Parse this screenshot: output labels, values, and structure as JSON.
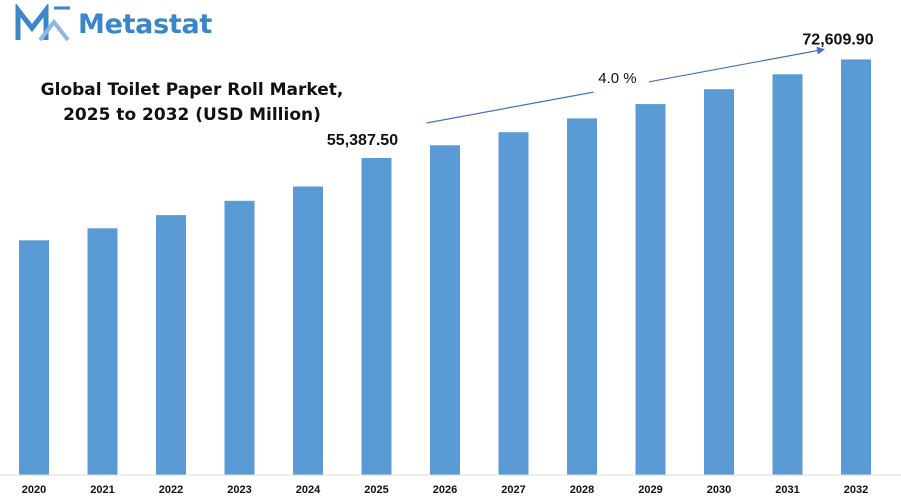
{
  "brand": {
    "name": "Metastat",
    "color": "#3b86c8",
    "icon": "metastat-logo-icon"
  },
  "chart_data": {
    "type": "bar",
    "title_lines": [
      "Global Toilet Paper Roll Market,",
      "2025 to 2032 (USD Million)"
    ],
    "categories": [
      "2020",
      "2021",
      "2022",
      "2023",
      "2024",
      "2025",
      "2026",
      "2027",
      "2028",
      "2029",
      "2030",
      "2031",
      "2032"
    ],
    "values": [
      41000,
      43100,
      45400,
      47900,
      50400,
      55387.5,
      57600,
      59900,
      62300,
      64800,
      67400,
      70000,
      72609.9
    ],
    "ylim": [
      0,
      76000
    ],
    "bar_color": "#5b9bd5",
    "data_labels": [
      {
        "category": "2025",
        "text": "55,387.50"
      },
      {
        "category": "2032",
        "text": "72,609.90"
      }
    ],
    "cagr": {
      "text": "4.0 %",
      "from": "2025",
      "to": "2032"
    },
    "grid": false,
    "legend": "none"
  }
}
